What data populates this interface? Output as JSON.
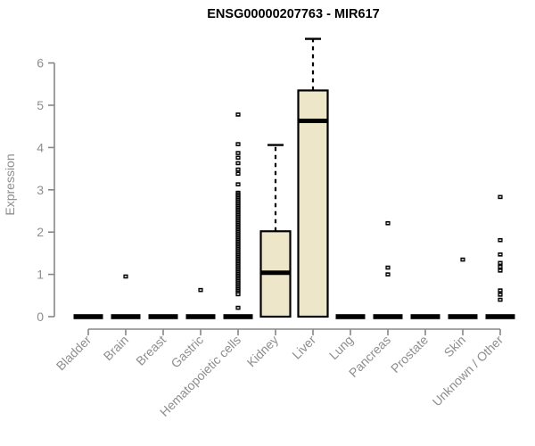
{
  "title": "ENSG00000207763 - MIR617",
  "colors": {
    "box_fill": "#EDE6C8",
    "box_stroke": "#000000",
    "median": "#000000",
    "whisker": "#000000",
    "outlier": "#000000",
    "axis_line": "#878787",
    "axis_text": "#8e8e8e",
    "title_text": "#000000",
    "background": "#ffffff"
  },
  "chart_data": {
    "type": "boxplot",
    "title": "ENSG00000207763 - MIR617",
    "xlabel": "",
    "ylabel": "Expression",
    "ylim": [
      0,
      6.8
    ],
    "yticks": [
      0,
      1,
      2,
      3,
      4,
      5,
      6
    ],
    "grid": false,
    "legend": null,
    "categories": [
      "Bladder",
      "Brain",
      "Breast",
      "Gastric",
      "Hematopoietic cells",
      "Kidney",
      "Liver",
      "Lung",
      "Pancreas",
      "Prostate",
      "Skin",
      "Unknown / Other"
    ],
    "boxes": [
      {
        "category": "Bladder",
        "whisker_low": 0,
        "q1": 0,
        "median": 0,
        "q3": 0,
        "whisker_high": 0,
        "outliers": []
      },
      {
        "category": "Brain",
        "whisker_low": 0,
        "q1": 0,
        "median": 0,
        "q3": 0,
        "whisker_high": 0,
        "outliers": [
          0.95
        ]
      },
      {
        "category": "Breast",
        "whisker_low": 0,
        "q1": 0,
        "median": 0,
        "q3": 0,
        "whisker_high": 0,
        "outliers": []
      },
      {
        "category": "Gastric",
        "whisker_low": 0,
        "q1": 0,
        "median": 0,
        "q3": 0,
        "whisker_high": 0,
        "outliers": [
          0.63
        ]
      },
      {
        "category": "Hematopoietic cells",
        "whisker_low": 0,
        "q1": 0,
        "median": 0,
        "q3": 0,
        "whisker_high": 0,
        "outliers": [
          4.78,
          4.08,
          3.87,
          3.76,
          3.63,
          3.48,
          3.38,
          3.13,
          2.93,
          2.89,
          2.85,
          2.81,
          2.77,
          2.73,
          2.69,
          2.65,
          2.61,
          2.57,
          2.53,
          2.49,
          2.45,
          2.41,
          2.37,
          2.33,
          2.29,
          2.25,
          2.21,
          2.17,
          2.13,
          2.09,
          2.05,
          2.01,
          1.97,
          1.93,
          1.89,
          1.85,
          1.81,
          1.77,
          1.73,
          1.69,
          1.65,
          1.61,
          1.57,
          1.53,
          1.49,
          1.45,
          1.41,
          1.37,
          1.33,
          1.29,
          1.25,
          1.21,
          1.17,
          1.13,
          1.09,
          1.05,
          1.01,
          0.97,
          0.93,
          0.89,
          0.85,
          0.81,
          0.77,
          0.73,
          0.69,
          0.65,
          0.61,
          0.57,
          0.53,
          0.21
        ]
      },
      {
        "category": "Kidney",
        "whisker_low": 0,
        "q1": 0,
        "median": 1.04,
        "q3": 2.02,
        "whisker_high": 4.06,
        "outliers": []
      },
      {
        "category": "Liver",
        "whisker_low": 0,
        "q1": 0,
        "median": 4.63,
        "q3": 5.35,
        "whisker_high": 6.57,
        "outliers": []
      },
      {
        "category": "Lung",
        "whisker_low": 0,
        "q1": 0,
        "median": 0,
        "q3": 0,
        "whisker_high": 0,
        "outliers": []
      },
      {
        "category": "Pancreas",
        "whisker_low": 0,
        "q1": 0,
        "median": 0,
        "q3": 0,
        "whisker_high": 0,
        "outliers": [
          2.21,
          1.16,
          1.0
        ]
      },
      {
        "category": "Prostate",
        "whisker_low": 0,
        "q1": 0,
        "median": 0,
        "q3": 0,
        "whisker_high": 0,
        "outliers": []
      },
      {
        "category": "Skin",
        "whisker_low": 0,
        "q1": 0,
        "median": 0,
        "q3": 0,
        "whisker_high": 0,
        "outliers": [
          1.35
        ]
      },
      {
        "category": "Unknown / Other",
        "whisker_low": 0,
        "q1": 0,
        "median": 0,
        "q3": 0,
        "whisker_high": 0,
        "outliers": [
          2.83,
          1.81,
          1.47,
          1.27,
          1.18,
          1.09,
          0.62,
          0.52,
          0.4
        ]
      }
    ]
  }
}
